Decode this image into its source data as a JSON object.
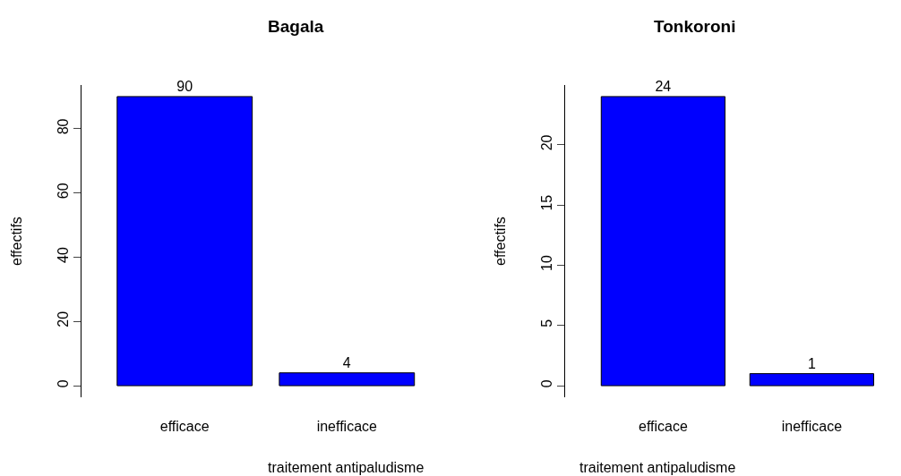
{
  "chart_data": [
    {
      "type": "bar",
      "title": "Bagala",
      "xlabel": "traitement antipaludisme",
      "ylabel": "effectifs",
      "categories": [
        "efficace",
        "inefficace"
      ],
      "values": [
        90,
        4
      ],
      "color": "#0000ff",
      "ylim": [
        -3.6,
        93.6
      ],
      "yticks": [
        0,
        20,
        40,
        60,
        80
      ],
      "data_labels": true
    },
    {
      "type": "bar",
      "title": "Tonkoroni",
      "xlabel": "traitement antipaludisme",
      "ylabel": "effectifs",
      "categories": [
        "efficace",
        "inefficace"
      ],
      "values": [
        24,
        1
      ],
      "color": "#0000ff",
      "ylim": [
        -0.96,
        24.96
      ],
      "yticks": [
        0,
        5,
        10,
        15,
        20
      ],
      "data_labels": true
    }
  ]
}
